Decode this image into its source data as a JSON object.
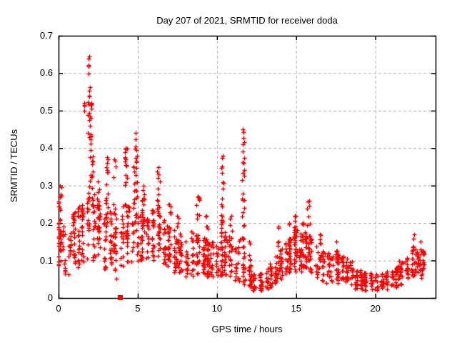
{
  "window": {
    "background": "#ffffff"
  },
  "chart_data": {
    "type": "scatter",
    "title": "Day 207 of 2021, SRMTID for receiver doda",
    "xlabel": "GPS time / hours",
    "ylabel": "SRMTID / TECUs",
    "xlim": [
      0,
      23.8
    ],
    "ylim": [
      0,
      0.7
    ],
    "xticks": [
      0,
      5,
      10,
      15,
      20
    ],
    "yticks": [
      0,
      0.1,
      0.2,
      0.3,
      0.4,
      0.5,
      0.6,
      0.7
    ],
    "xtick_labels": [
      "0",
      "5",
      "10",
      "15",
      "20"
    ],
    "ytick_labels": [
      "0",
      "0.1",
      "0.2",
      "0.3",
      "0.4",
      "0.5",
      "0.6",
      "0.7"
    ],
    "grid": true,
    "legend": "none",
    "marker": {
      "shape": "plus",
      "color": "#ff0000",
      "size": 7
    },
    "colors": {
      "axis": "#000000",
      "grid": "#b2b2b2",
      "text": "#000000",
      "points": "#ff0000"
    },
    "data_start_hour": 0.0,
    "data_end_hour": 23.1,
    "square_point": {
      "t": 3.88,
      "y": 0.002
    },
    "band_envelope": [
      [
        0.0,
        0.08,
        0.3
      ],
      [
        0.3,
        0.06,
        0.2
      ],
      [
        0.7,
        0.06,
        0.18
      ],
      [
        1.0,
        0.07,
        0.24
      ],
      [
        1.4,
        0.08,
        0.26
      ],
      [
        1.8,
        0.1,
        0.3
      ],
      [
        2.1,
        0.1,
        0.3
      ],
      [
        2.4,
        0.08,
        0.26
      ],
      [
        2.8,
        0.07,
        0.24
      ],
      [
        3.2,
        0.06,
        0.26
      ],
      [
        3.6,
        0.05,
        0.24
      ],
      [
        4.0,
        0.08,
        0.26
      ],
      [
        4.5,
        0.1,
        0.28
      ],
      [
        5.0,
        0.09,
        0.24
      ],
      [
        5.5,
        0.1,
        0.22
      ],
      [
        6.0,
        0.1,
        0.24
      ],
      [
        6.5,
        0.09,
        0.22
      ],
      [
        7.0,
        0.08,
        0.2
      ],
      [
        7.5,
        0.06,
        0.18
      ],
      [
        8.0,
        0.05,
        0.16
      ],
      [
        8.5,
        0.06,
        0.18
      ],
      [
        9.0,
        0.06,
        0.17
      ],
      [
        9.5,
        0.05,
        0.15
      ],
      [
        10.0,
        0.05,
        0.15
      ],
      [
        10.5,
        0.06,
        0.18
      ],
      [
        11.0,
        0.05,
        0.15
      ],
      [
        11.5,
        0.04,
        0.16
      ],
      [
        12.0,
        0.03,
        0.1
      ],
      [
        12.4,
        0.02,
        0.06
      ],
      [
        13.0,
        0.02,
        0.07
      ],
      [
        13.5,
        0.03,
        0.1
      ],
      [
        14.0,
        0.05,
        0.13
      ],
      [
        14.5,
        0.06,
        0.16
      ],
      [
        15.0,
        0.07,
        0.18
      ],
      [
        15.5,
        0.07,
        0.18
      ],
      [
        16.0,
        0.06,
        0.16
      ],
      [
        16.5,
        0.05,
        0.14
      ],
      [
        17.0,
        0.04,
        0.12
      ],
      [
        17.5,
        0.04,
        0.13
      ],
      [
        18.0,
        0.04,
        0.11
      ],
      [
        18.5,
        0.03,
        0.1
      ],
      [
        19.0,
        0.02,
        0.08
      ],
      [
        19.5,
        0.02,
        0.07
      ],
      [
        20.0,
        0.02,
        0.07
      ],
      [
        20.5,
        0.02,
        0.07
      ],
      [
        21.0,
        0.02,
        0.08
      ],
      [
        21.5,
        0.03,
        0.09
      ],
      [
        22.0,
        0.04,
        0.11
      ],
      [
        22.5,
        0.06,
        0.14
      ],
      [
        22.9,
        0.07,
        0.14
      ],
      [
        23.1,
        0.08,
        0.13
      ]
    ],
    "spike_clusters": [
      {
        "t": 0.08,
        "w": 0.1,
        "base": 0.1,
        "top": 0.3,
        "n": 26
      },
      {
        "t": 1.63,
        "w": 0.03,
        "base": 0.49,
        "top": 0.52,
        "n": 3
      },
      {
        "t": 1.92,
        "w": 0.07,
        "base": 0.42,
        "top": 0.645,
        "n": 16
      },
      {
        "t": 2.06,
        "w": 0.09,
        "base": 0.28,
        "top": 0.52,
        "n": 26
      },
      {
        "t": 2.5,
        "w": 0.08,
        "base": 0.15,
        "top": 0.31,
        "n": 18
      },
      {
        "t": 3.05,
        "w": 0.08,
        "base": 0.16,
        "top": 0.375,
        "n": 20
      },
      {
        "t": 3.5,
        "w": 0.1,
        "base": 0.12,
        "top": 0.37,
        "n": 22
      },
      {
        "t": 4.25,
        "w": 0.09,
        "base": 0.16,
        "top": 0.4,
        "n": 22
      },
      {
        "t": 4.85,
        "w": 0.14,
        "base": 0.2,
        "top": 0.44,
        "n": 30
      },
      {
        "t": 5.35,
        "w": 0.08,
        "base": 0.14,
        "top": 0.3,
        "n": 16
      },
      {
        "t": 6.3,
        "w": 0.1,
        "base": 0.14,
        "top": 0.35,
        "n": 24
      },
      {
        "t": 7.0,
        "w": 0.1,
        "base": 0.1,
        "top": 0.25,
        "n": 16
      },
      {
        "t": 7.5,
        "w": 0.08,
        "base": 0.08,
        "top": 0.22,
        "n": 12
      },
      {
        "t": 8.8,
        "w": 0.1,
        "base": 0.08,
        "top": 0.27,
        "n": 18
      },
      {
        "t": 9.35,
        "w": 0.08,
        "base": 0.06,
        "top": 0.22,
        "n": 12
      },
      {
        "t": 10.35,
        "w": 0.08,
        "base": 0.1,
        "top": 0.38,
        "n": 22
      },
      {
        "t": 10.9,
        "w": 0.08,
        "base": 0.06,
        "top": 0.22,
        "n": 12
      },
      {
        "t": 11.65,
        "w": 0.08,
        "base": 0.05,
        "top": 0.45,
        "n": 30
      },
      {
        "t": 12.05,
        "w": 0.05,
        "base": 0.04,
        "top": 0.15,
        "n": 8
      },
      {
        "t": 13.9,
        "w": 0.08,
        "base": 0.06,
        "top": 0.19,
        "n": 10
      },
      {
        "t": 14.55,
        "w": 0.08,
        "base": 0.08,
        "top": 0.2,
        "n": 12
      },
      {
        "t": 14.95,
        "w": 0.1,
        "base": 0.08,
        "top": 0.22,
        "n": 14
      },
      {
        "t": 15.45,
        "w": 0.08,
        "base": 0.08,
        "top": 0.2,
        "n": 12
      },
      {
        "t": 15.8,
        "w": 0.1,
        "base": 0.08,
        "top": 0.26,
        "n": 16
      },
      {
        "t": 16.5,
        "w": 0.08,
        "base": 0.05,
        "top": 0.17,
        "n": 10
      },
      {
        "t": 17.55,
        "w": 0.08,
        "base": 0.04,
        "top": 0.15,
        "n": 10
      },
      {
        "t": 21.5,
        "w": 0.08,
        "base": 0.03,
        "top": 0.1,
        "n": 8
      },
      {
        "t": 22.45,
        "w": 0.1,
        "base": 0.05,
        "top": 0.17,
        "n": 14
      },
      {
        "t": 22.85,
        "w": 0.08,
        "base": 0.05,
        "top": 0.15,
        "n": 12
      }
    ]
  }
}
